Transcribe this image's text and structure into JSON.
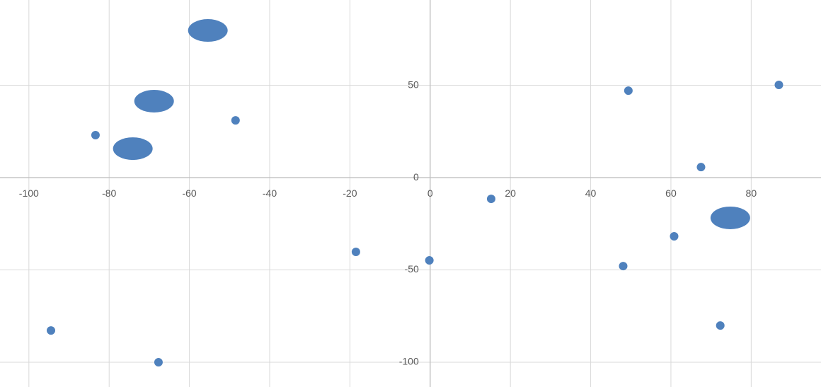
{
  "chart_data": {
    "type": "scatter",
    "xlim": [
      -107.2,
      97.4
    ],
    "ylim": [
      -113.4,
      96.2
    ],
    "xticks": [
      -100,
      -80,
      -60,
      -40,
      -20,
      0,
      20,
      40,
      60,
      80
    ],
    "yticks": [
      -100,
      -50,
      0,
      50
    ],
    "grid": true,
    "series": [
      {
        "color": "#4f81bd",
        "marker": "circle",
        "x": [
          -83.4,
          -48.5,
          -94.5,
          -67.7,
          -18.5,
          -0.2,
          15.2,
          49.4,
          86.9,
          67.5,
          60.8,
          48.1,
          72.3
        ],
        "values": [
          23.0,
          31.0,
          -82.8,
          -100,
          -40.2,
          -44.8,
          -11.5,
          47.1,
          50.2,
          5.7,
          -31.8,
          -47.9,
          -80.1
        ]
      },
      {
        "color": "#4f81bd",
        "marker": "oval",
        "x": [
          -55.4,
          -68.8,
          -74.1,
          74.8
        ],
        "values": [
          79.7,
          41.4,
          15.7,
          -21.8
        ]
      }
    ]
  }
}
